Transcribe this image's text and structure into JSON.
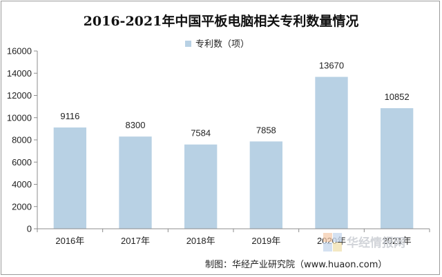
{
  "chart_data": {
    "type": "bar",
    "title": "2016-2021年中国平板电脑相关专利数量情况",
    "categories": [
      "2016年",
      "2017年",
      "2018年",
      "2019年",
      "2020年",
      "2021年"
    ],
    "series": [
      {
        "name": "专利数（项）",
        "values": [
          9116,
          8300,
          7584,
          7858,
          13670,
          10852
        ]
      }
    ],
    "data_labels": [
      "9116",
      "8300",
      "7584",
      "7858",
      "13670",
      "10852"
    ],
    "y_ticks": [
      "0",
      "2000",
      "4000",
      "6000",
      "8000",
      "10000",
      "12000",
      "14000",
      "16000"
    ],
    "ylim": [
      0,
      16000
    ],
    "y_step": 2000,
    "grid": false,
    "legend_position": "top"
  },
  "colors": {
    "bar": "#b8d1e4",
    "axis": "#8c8c8c"
  },
  "source": "制图：华经产业研究院（www.huaon.com）",
  "watermark": "华经情报网"
}
